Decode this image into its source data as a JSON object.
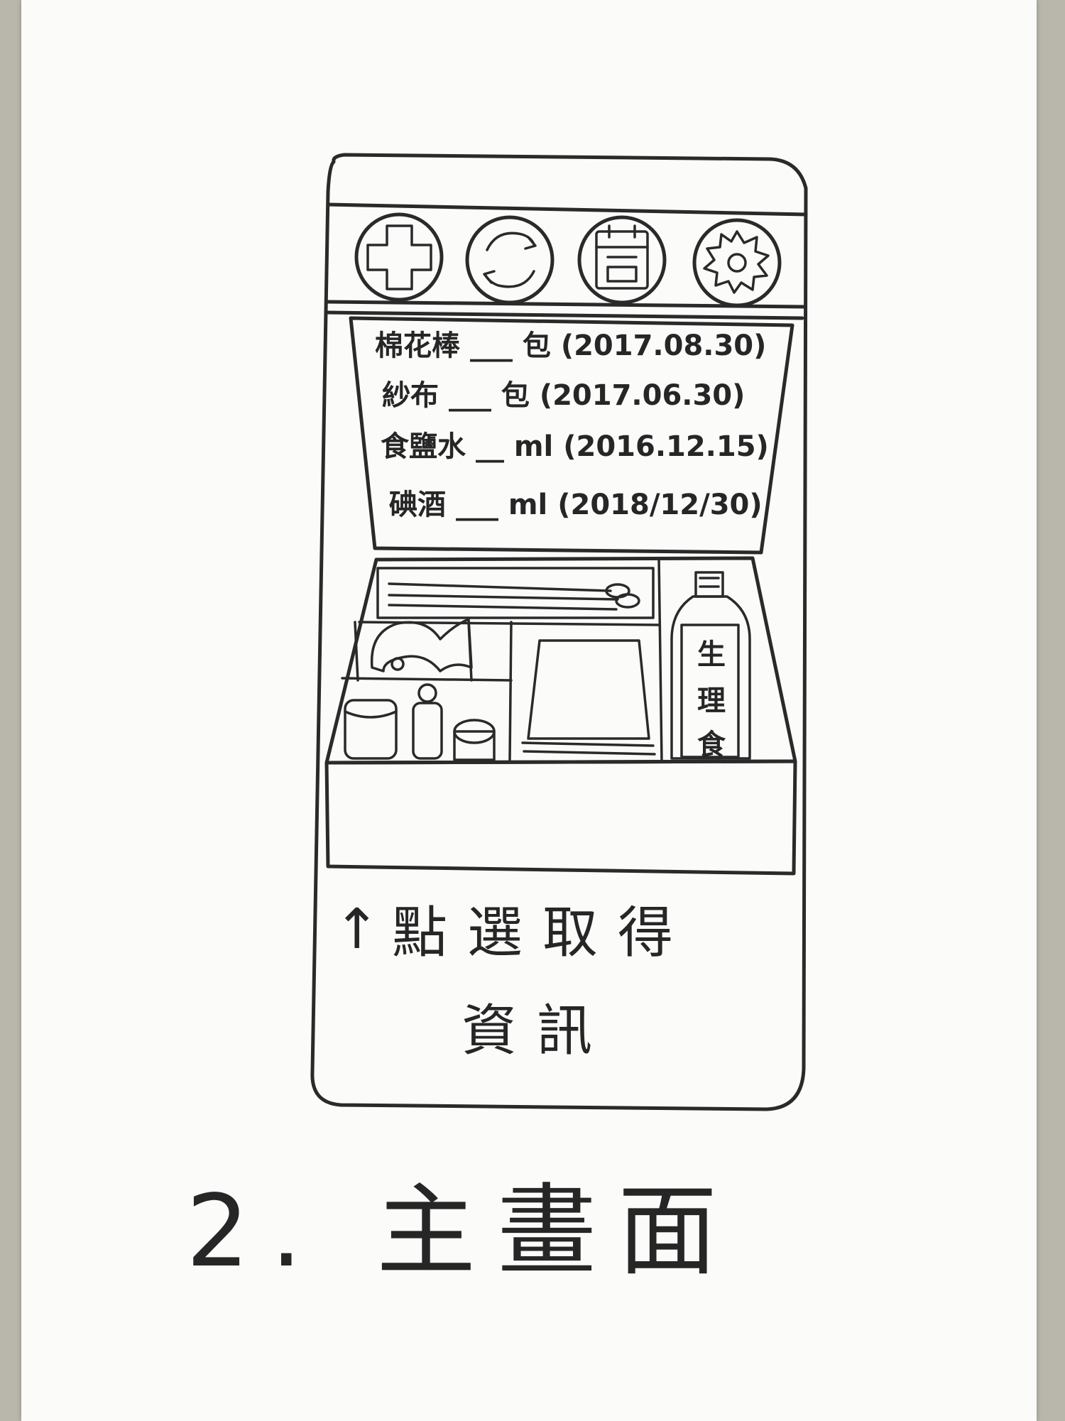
{
  "toolbar": {
    "icons": [
      {
        "name": "plus-icon"
      },
      {
        "name": "refresh-icon"
      },
      {
        "name": "calendar-icon"
      },
      {
        "name": "gear-icon"
      }
    ]
  },
  "supplies": [
    {
      "name": "棉花棒",
      "blank": "___",
      "unit": "包",
      "date": "(2017.08.30)"
    },
    {
      "name": "紗布",
      "blank": "___",
      "unit": "包",
      "date": "(2017.06.30)"
    },
    {
      "name": "食鹽水",
      "blank": "__",
      "unit": "ml",
      "date": "(2016.12.15)"
    },
    {
      "name": "碘酒",
      "blank": "___",
      "unit": "ml",
      "date": "(2018/12/30)"
    }
  ],
  "kit": {
    "bottle_label": [
      "生",
      "理",
      "食"
    ]
  },
  "hint": {
    "arrow": "↑",
    "line1": "點選取得",
    "line2": "資訊"
  },
  "caption": "2. 主畫面"
}
